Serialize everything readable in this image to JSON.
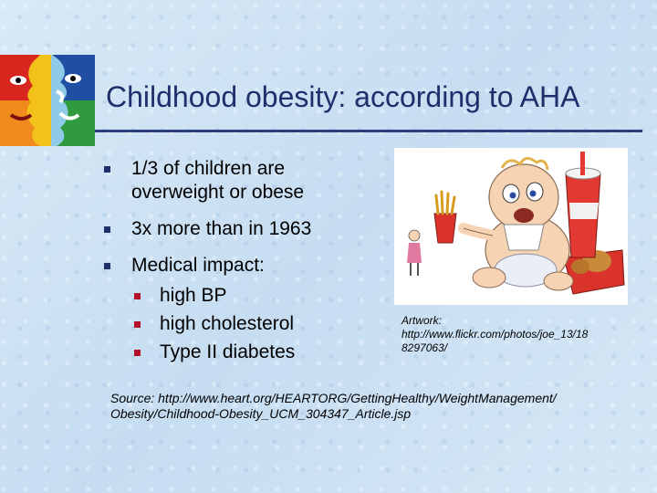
{
  "slide": {
    "title": "Childhood obesity: according to AHA",
    "bullets": [
      {
        "text": "1/3 of children are overweight or obese"
      },
      {
        "text": "3x more than in 1963"
      },
      {
        "text": "Medical impact:"
      }
    ],
    "sub_bullets": [
      {
        "text": "high BP"
      },
      {
        "text": "high cholesterol"
      },
      {
        "text": "Type II diabetes"
      }
    ],
    "artwork_caption": "Artwork: http://www.flickr.com/photos/joe_13/18 8297063/",
    "source": "Source: http://www.heart.org/HEARTORG/GettingHealthy/WeightManagement/ Obesity/Childhood-Obesity_UCM_304347_Article.jsp"
  },
  "colors": {
    "title": "#1f2f6b",
    "bullet_marker": "#1f2f6b",
    "sub_bullet_marker": "#b5102b",
    "background": "#cfe3f4"
  },
  "icons": {
    "logo": "faces-logo-icon",
    "artwork": "cartoon-baby-fast-food-image",
    "bullet": "square-bullet-icon"
  }
}
